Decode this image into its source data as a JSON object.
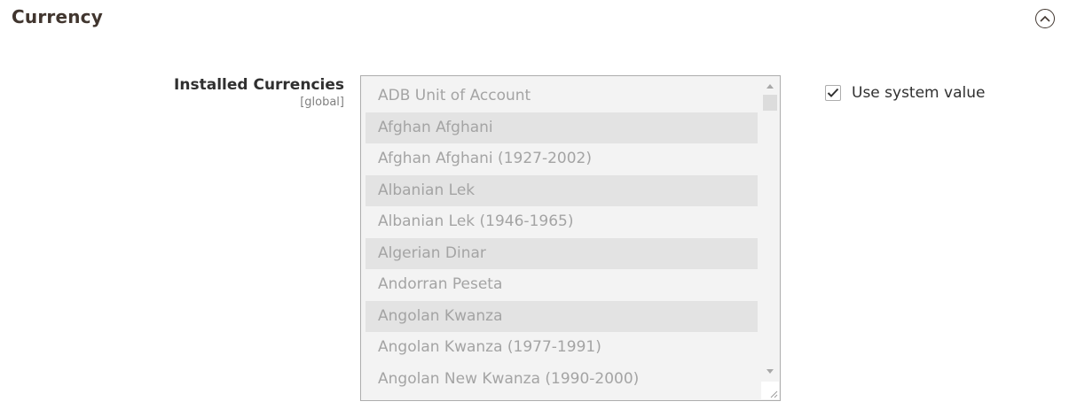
{
  "section": {
    "title": "Currency"
  },
  "field": {
    "label": "Installed Currencies",
    "scope": "[global]",
    "options": [
      {
        "label": "ADB Unit of Account",
        "selected": false
      },
      {
        "label": "Afghan Afghani",
        "selected": true
      },
      {
        "label": "Afghan Afghani (1927-2002)",
        "selected": false
      },
      {
        "label": "Albanian Lek",
        "selected": true
      },
      {
        "label": "Albanian Lek (1946-1965)",
        "selected": false
      },
      {
        "label": "Algerian Dinar",
        "selected": true
      },
      {
        "label": "Andorran Peseta",
        "selected": false
      },
      {
        "label": "Angolan Kwanza",
        "selected": true
      },
      {
        "label": "Angolan Kwanza (1977-1991)",
        "selected": false
      },
      {
        "label": "Angolan New Kwanza (1990-2000)",
        "selected": false
      }
    ]
  },
  "system_value": {
    "label": "Use system value",
    "checked": true
  },
  "icons": {
    "collapse": "chevron-up-circle-icon",
    "checkbox": "checkmark-icon"
  },
  "colors": {
    "disabled_text": "#a4a4a4",
    "selected_bg": "#e3e3e3",
    "listbox_bg": "#f3f3f3"
  }
}
